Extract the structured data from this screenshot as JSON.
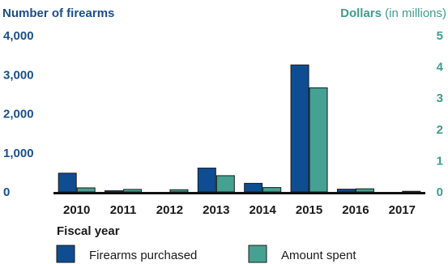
{
  "chart_data": {
    "type": "bar",
    "categories": [
      "2010",
      "2011",
      "2012",
      "2013",
      "2014",
      "2015",
      "2016",
      "2017"
    ],
    "series": [
      {
        "name": "Firearms purchased",
        "axis": "left",
        "color": "#0e4d92",
        "values": [
          480,
          30,
          0,
          610,
          220,
          3250,
          70,
          0
        ]
      },
      {
        "name": "Amount spent",
        "axis": "right",
        "color": "#45a191",
        "values": [
          0.13,
          0.08,
          0.07,
          0.52,
          0.14,
          3.33,
          0.1,
          0.02
        ]
      }
    ],
    "ylabel_left": "Number of firearms",
    "ylabel_right_bold": "Dollars",
    "ylabel_right_rest": " (in millions)",
    "ylim_left": [
      0,
      4000
    ],
    "yticks_left": [
      "0",
      "1,000",
      "2,000",
      "3,000",
      "4,000"
    ],
    "ylim_right": [
      0,
      5
    ],
    "yticks_right": [
      "0",
      "1",
      "2",
      "3",
      "4",
      "5"
    ],
    "xlabel": "Fiscal year",
    "grid": false,
    "legend_position": "bottom-left"
  }
}
